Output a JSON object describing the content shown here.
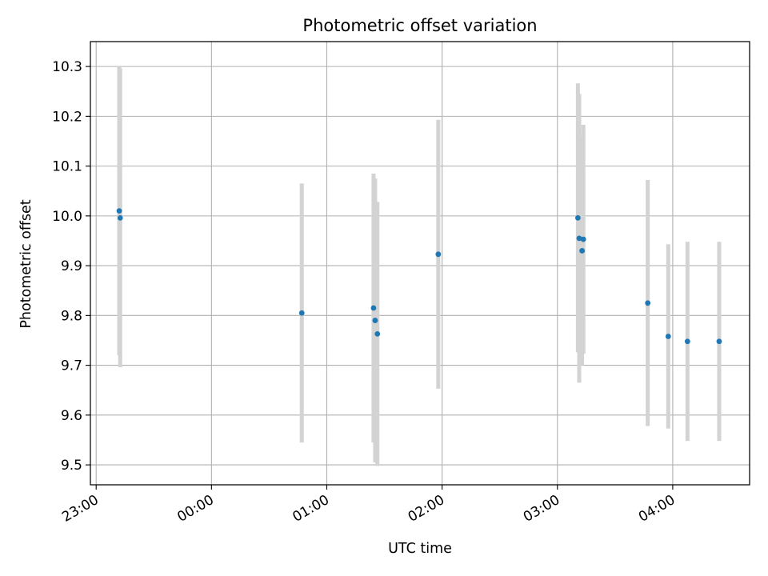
{
  "chart_data": {
    "type": "scatter",
    "title": "Photometric offset variation",
    "xlabel": "UTC time",
    "ylabel": "Photometric offset",
    "x_is_time": true,
    "x_reference_date": "2000-01-01",
    "xlim": [
      "2000-01-01T22:57:00",
      "2000-01-02T04:40:00"
    ],
    "ylim": [
      9.46,
      10.35
    ],
    "x_ticks": [
      {
        "t": "2000-01-01T23:00:00",
        "label": "23:00"
      },
      {
        "t": "2000-01-02T00:00:00",
        "label": "00:00"
      },
      {
        "t": "2000-01-02T01:00:00",
        "label": "01:00"
      },
      {
        "t": "2000-01-02T02:00:00",
        "label": "02:00"
      },
      {
        "t": "2000-01-02T03:00:00",
        "label": "03:00"
      },
      {
        "t": "2000-01-02T04:00:00",
        "label": "04:00"
      }
    ],
    "y_ticks": [
      {
        "v": 9.5,
        "label": "9.5"
      },
      {
        "v": 9.6,
        "label": "9.6"
      },
      {
        "v": 9.7,
        "label": "9.7"
      },
      {
        "v": 9.8,
        "label": "9.8"
      },
      {
        "v": 9.9,
        "label": "9.9"
      },
      {
        "v": 10.0,
        "label": "10.0"
      },
      {
        "v": 10.1,
        "label": "10.1"
      },
      {
        "v": 10.2,
        "label": "10.2"
      },
      {
        "v": 10.3,
        "label": "10.3"
      }
    ],
    "grid": true,
    "point_color": "#1f77b4",
    "errorbar_color": "#d3d3d3",
    "series": [
      {
        "points": [
          {
            "t": "2000-01-01T23:12:00",
            "y": 10.01,
            "yerr": 0.29
          },
          {
            "t": "2000-01-01T23:12:30",
            "y": 9.996,
            "yerr": 0.3
          },
          {
            "t": "2000-01-02T00:47:00",
            "y": 9.805,
            "yerr": 0.26
          },
          {
            "t": "2000-01-02T01:24:20",
            "y": 9.815,
            "yerr": 0.27
          },
          {
            "t": "2000-01-02T01:25:10",
            "y": 9.79,
            "yerr": 0.285
          },
          {
            "t": "2000-01-02T01:26:20",
            "y": 9.763,
            "yerr": 0.265
          },
          {
            "t": "2000-01-02T01:58:00",
            "y": 9.923,
            "yerr": 0.27
          },
          {
            "t": "2000-01-02T03:10:40",
            "y": 9.996,
            "yerr": 0.27
          },
          {
            "t": "2000-01-02T03:11:20",
            "y": 9.955,
            "yerr": 0.29
          },
          {
            "t": "2000-01-02T03:12:50",
            "y": 9.93,
            "yerr": 0.23
          },
          {
            "t": "2000-01-02T03:13:30",
            "y": 9.953,
            "yerr": 0.23
          },
          {
            "t": "2000-01-02T03:47:00",
            "y": 9.825,
            "yerr": 0.247
          },
          {
            "t": "2000-01-02T03:57:40",
            "y": 9.758,
            "yerr": 0.185
          },
          {
            "t": "2000-01-02T04:07:40",
            "y": 9.748,
            "yerr": 0.2
          },
          {
            "t": "2000-01-02T04:24:10",
            "y": 9.748,
            "yerr": 0.2
          }
        ]
      }
    ]
  }
}
